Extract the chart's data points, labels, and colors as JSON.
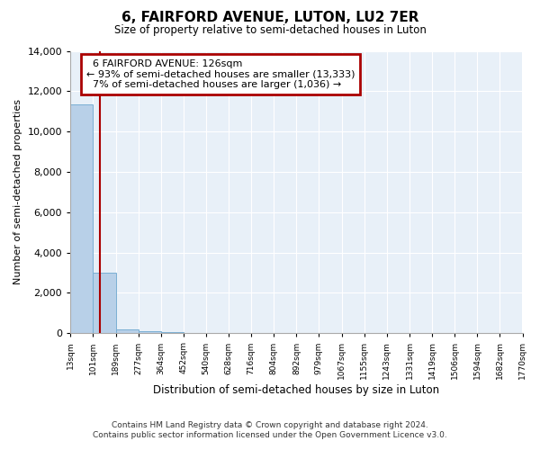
{
  "title": "6, FAIRFORD AVENUE, LUTON, LU2 7ER",
  "subtitle": "Size of property relative to semi-detached houses in Luton",
  "xlabel": "Distribution of semi-detached houses by size in Luton",
  "ylabel": "Number of semi-detached properties",
  "bin_edges": [
    13,
    101,
    189,
    277,
    364,
    452,
    540,
    628,
    716,
    804,
    892,
    979,
    1067,
    1155,
    1243,
    1331,
    1419,
    1506,
    1594,
    1682,
    1770
  ],
  "bar_heights": [
    11333,
    3000,
    200,
    80,
    50,
    30,
    20,
    15,
    10,
    8,
    6,
    5,
    4,
    3,
    3,
    2,
    2,
    1,
    1,
    1
  ],
  "bar_color": "#b8d0e8",
  "bar_edge_color": "#7aafd4",
  "property_size": 126,
  "property_label": "6 FAIRFORD AVENUE: 126sqm",
  "pct_smaller": 93,
  "count_smaller": 13333,
  "pct_larger": 7,
  "count_larger": 1036,
  "vline_color": "#aa0000",
  "annotation_box_color": "#aa0000",
  "ylim": [
    0,
    14000
  ],
  "yticks": [
    0,
    2000,
    4000,
    6000,
    8000,
    10000,
    12000,
    14000
  ],
  "x_tick_labels": [
    "13sqm",
    "101sqm",
    "189sqm",
    "277sqm",
    "364sqm",
    "452sqm",
    "540sqm",
    "628sqm",
    "716sqm",
    "804sqm",
    "892sqm",
    "979sqm",
    "1067sqm",
    "1155sqm",
    "1243sqm",
    "1331sqm",
    "1419sqm",
    "1506sqm",
    "1594sqm",
    "1682sqm",
    "1770sqm"
  ],
  "footer_line1": "Contains HM Land Registry data © Crown copyright and database right 2024.",
  "footer_line2": "Contains public sector information licensed under the Open Government Licence v3.0.",
  "bg_color": "#e8f0f8",
  "fig_bg_color": "#ffffff",
  "grid_color": "#ffffff"
}
